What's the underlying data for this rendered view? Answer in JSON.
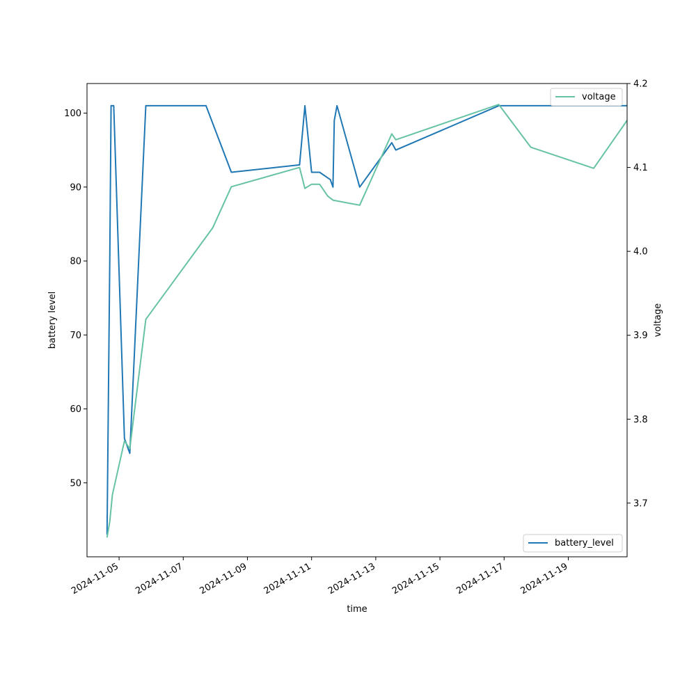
{
  "chart_data": {
    "type": "line",
    "xlabel": "time",
    "ylabel_left": "battery level",
    "ylabel_right": "voltage",
    "x_ticks": [
      "2024-11-05",
      "2024-11-07",
      "2024-11-09",
      "2024-11-11",
      "2024-11-13",
      "2024-11-15",
      "2024-11-17",
      "2024-11-19"
    ],
    "y_left_ticks": [
      50,
      60,
      70,
      80,
      90,
      100
    ],
    "y_right_ticks": [
      "3.7",
      "3.8",
      "3.9",
      "4.0",
      "4.1",
      "4.2"
    ],
    "y_left_range": [
      40,
      104
    ],
    "y_right_range": [
      3.636,
      4.2
    ],
    "x_range": [
      "2024-11-04T00:00",
      "2024-11-20T20:00"
    ],
    "series": [
      {
        "name": "battery_level",
        "axis": "left",
        "color": "#1f77b4",
        "legend": "lower right",
        "points": [
          [
            "2024-11-04T15:00",
            43
          ],
          [
            "2024-11-04T17:00",
            80
          ],
          [
            "2024-11-04T18:00",
            101
          ],
          [
            "2024-11-04T20:00",
            101
          ],
          [
            "2024-11-05T04:00",
            56
          ],
          [
            "2024-11-05T08:00",
            54
          ],
          [
            "2024-11-05T20:00",
            101
          ],
          [
            "2024-11-07T17:00",
            101
          ],
          [
            "2024-11-08T12:00",
            92
          ],
          [
            "2024-11-10T15:00",
            93
          ],
          [
            "2024-11-10T19:00",
            101
          ],
          [
            "2024-11-11T00:00",
            92
          ],
          [
            "2024-11-11T06:00",
            92
          ],
          [
            "2024-11-11T14:00",
            91
          ],
          [
            "2024-11-11T16:00",
            90
          ],
          [
            "2024-11-11T17:00",
            99
          ],
          [
            "2024-11-11T19:00",
            101
          ],
          [
            "2024-11-12T12:00",
            90
          ],
          [
            "2024-11-13T12:00",
            96
          ],
          [
            "2024-11-13T15:00",
            95
          ],
          [
            "2024-11-16T20:00",
            101
          ],
          [
            "2024-11-20T20:00",
            101
          ]
        ]
      },
      {
        "name": "voltage",
        "axis": "right",
        "color": "#66c2a5",
        "legend": "upper right",
        "points": [
          [
            "2024-11-04T15:00",
            3.659
          ],
          [
            "2024-11-04T17:00",
            3.678
          ],
          [
            "2024-11-04T19:00",
            3.71
          ],
          [
            "2024-11-05T04:00",
            3.774
          ],
          [
            "2024-11-05T08:00",
            3.765
          ],
          [
            "2024-11-05T20:00",
            3.919
          ],
          [
            "2024-11-07T22:00",
            4.028
          ],
          [
            "2024-11-08T12:00",
            4.077
          ],
          [
            "2024-11-10T15:00",
            4.1
          ],
          [
            "2024-11-10T19:00",
            4.075
          ],
          [
            "2024-11-11T00:00",
            4.08
          ],
          [
            "2024-11-11T06:00",
            4.08
          ],
          [
            "2024-11-11T12:00",
            4.066
          ],
          [
            "2024-11-11T16:00",
            4.061
          ],
          [
            "2024-11-12T12:00",
            4.055
          ],
          [
            "2024-11-13T12:00",
            4.14
          ],
          [
            "2024-11-13T15:00",
            4.133
          ],
          [
            "2024-11-16T20:00",
            4.175
          ],
          [
            "2024-11-17T20:00",
            4.124
          ],
          [
            "2024-11-19T19:00",
            4.099
          ],
          [
            "2024-11-20T20:00",
            4.156
          ]
        ]
      }
    ],
    "grid": false
  }
}
